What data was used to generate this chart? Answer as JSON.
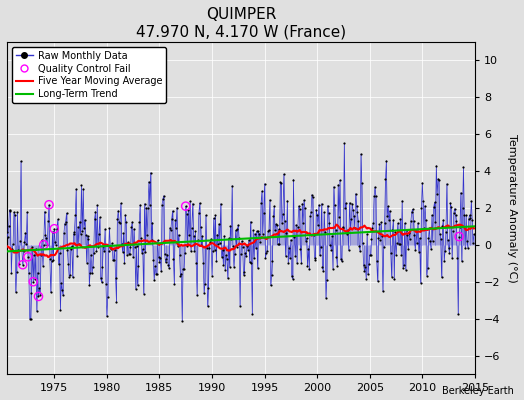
{
  "title": "QUIMPER",
  "subtitle": "47.970 N, 4.170 W (France)",
  "ylabel": "Temperature Anomaly (°C)",
  "credit": "Berkeley Earth",
  "ylim": [
    -7,
    11
  ],
  "yticks": [
    -6,
    -4,
    -2,
    0,
    2,
    4,
    6,
    8,
    10
  ],
  "xlim": [
    1970.5,
    2015
  ],
  "xticks": [
    1975,
    1980,
    1985,
    1990,
    1995,
    2000,
    2005,
    2010,
    2015
  ],
  "data_color": "#3333cc",
  "trend_color": "#00bb00",
  "moving_avg_color": "#ff0000",
  "qc_color": "#ff00ff",
  "background_color": "#e0e0e0",
  "seed": 12345,
  "figsize": [
    5.24,
    4.0
  ],
  "dpi": 100
}
